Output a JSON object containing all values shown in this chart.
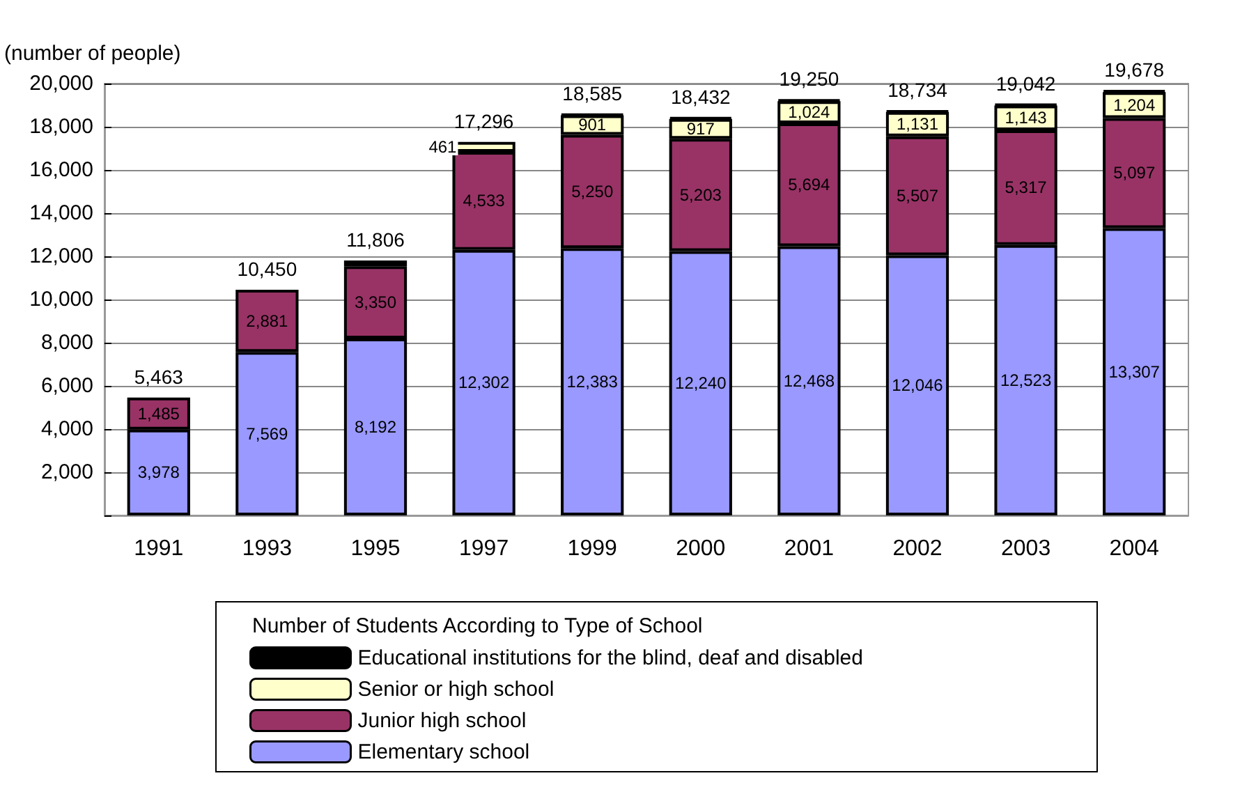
{
  "chart_data": {
    "type": "bar",
    "stacked": true,
    "ylabel": "(number of people)",
    "legend_title": "Number of Students According to Type of School",
    "legend": "bottom",
    "grid": "y",
    "categories": [
      "1991",
      "1993",
      "1995",
      "1997",
      "1999",
      "2000",
      "2001",
      "2002",
      "2003",
      "2004"
    ],
    "ylim": [
      0,
      20000
    ],
    "yticks": [
      {
        "value": 0,
        "label": null
      },
      {
        "value": 2000,
        "label": "2,000"
      },
      {
        "value": 4000,
        "label": "4,000"
      },
      {
        "value": 6000,
        "label": "6,000"
      },
      {
        "value": 8000,
        "label": "8,000"
      },
      {
        "value": 10000,
        "label": "10,000"
      },
      {
        "value": 12000,
        "label": "12,000"
      },
      {
        "value": 14000,
        "label": "14,000"
      },
      {
        "value": 16000,
        "label": "16,000"
      },
      {
        "value": 18000,
        "label": "18,000"
      },
      {
        "value": 20000,
        "label": "20,000"
      }
    ],
    "series": [
      {
        "name": "Elementary school",
        "color": "#9999ff",
        "values": [
          3978,
          7569,
          8192,
          12302,
          12383,
          12240,
          12468,
          12046,
          12523,
          13307
        ],
        "value_labels": [
          "3,978",
          "7,569",
          "8,192",
          "12,302",
          "12,383",
          "12,240",
          "12,468",
          "12,046",
          "12,523",
          "13,307"
        ]
      },
      {
        "name": "Junior high school",
        "color": "#993366",
        "values": [
          1485,
          2881,
          3350,
          4533,
          5250,
          5203,
          5694,
          5507,
          5317,
          5097
        ],
        "value_labels": [
          "1,485",
          "2,881",
          "3,350",
          "4,533",
          "5,250",
          "5,203",
          "5,694",
          "5,507",
          "5,317",
          "5,097"
        ]
      },
      {
        "name": "Senior or high school",
        "color": "#ffffcc",
        "values": [
          null,
          null,
          null,
          461,
          901,
          917,
          1024,
          1131,
          1143,
          1204
        ],
        "value_labels": [
          null,
          null,
          null,
          "461",
          "901",
          "917",
          "1,024",
          "1,131",
          "1,143",
          "1,204"
        ]
      },
      {
        "name": "Educational institutions for the blind, deaf and disabled",
        "color": "#000000",
        "values": [
          null,
          null,
          264,
          null,
          51,
          72,
          64,
          50,
          59,
          70
        ]
      }
    ],
    "totals": [
      "5,463",
      "10,450",
      "11,806",
      "17,296",
      "18,585",
      "18,432",
      "19,250",
      "18,734",
      "19,042",
      "19,678"
    ]
  }
}
